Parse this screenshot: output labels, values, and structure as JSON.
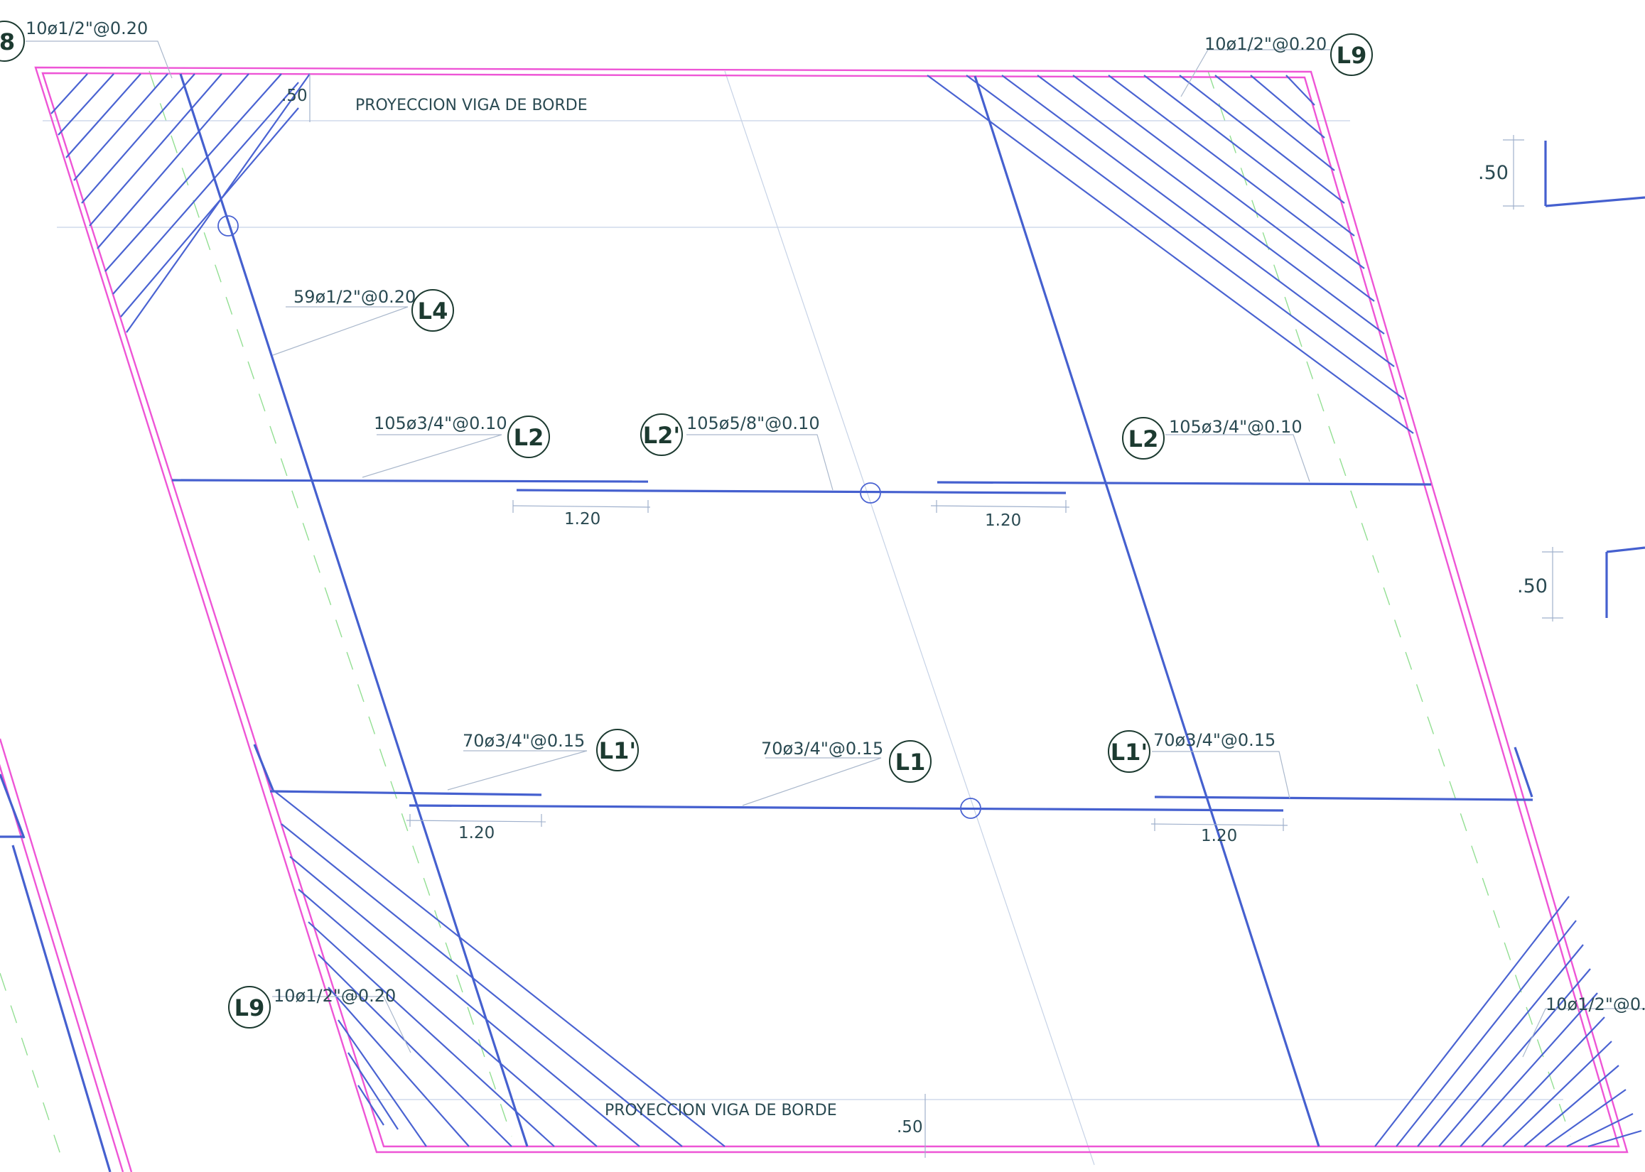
{
  "labels": {
    "top_left_bar": "10ø1/2\"@0.20",
    "top_right_bar": "10ø1/2\"@0.20",
    "bottom_left_bar": "10ø1/2\"@0.20",
    "bottom_right_bar": "10ø1/2\"@0.",
    "l4_bar": "59ø1/2\"@0.20",
    "l2_left_bar": "105ø3/4\"@0.10",
    "l2p_bar": "105ø5/8\"@0.10",
    "l2_right_bar": "105ø3/4\"@0.10",
    "l1p_left_bar": "70ø3/4\"@0.15",
    "l1_bar": "70ø3/4\"@0.15",
    "l1p_right_bar": "70ø3/4\"@0.15",
    "edge_beam_top": "PROYECCION VIGA DE BORDE",
    "edge_beam_bottom": "PROYECCION VIGA DE BORDE"
  },
  "dimensions": {
    "lap_l2_left": "1.20",
    "lap_l2_right": "1.20",
    "lap_l1_left": "1.20",
    "lap_l1_right": "1.20",
    "edge_top": ".50",
    "edge_bottom": ".50",
    "side_upper": ".50",
    "side_lower": ".50"
  },
  "tags": {
    "l8_partial": "8",
    "l9_top": "L9",
    "l9_bottom": "L9",
    "l4": "L4",
    "l2_left": "L2",
    "l2_prime": "L2'",
    "l2_right": "L2",
    "l1_prime_left": "L1'",
    "l1": "L1",
    "l1_prime_right": "L1'"
  },
  "colors": {
    "rebar": "#4560cf",
    "slab_outline": "#ee55d6",
    "text": "#2a4a52",
    "axis": "#6fd46f"
  }
}
